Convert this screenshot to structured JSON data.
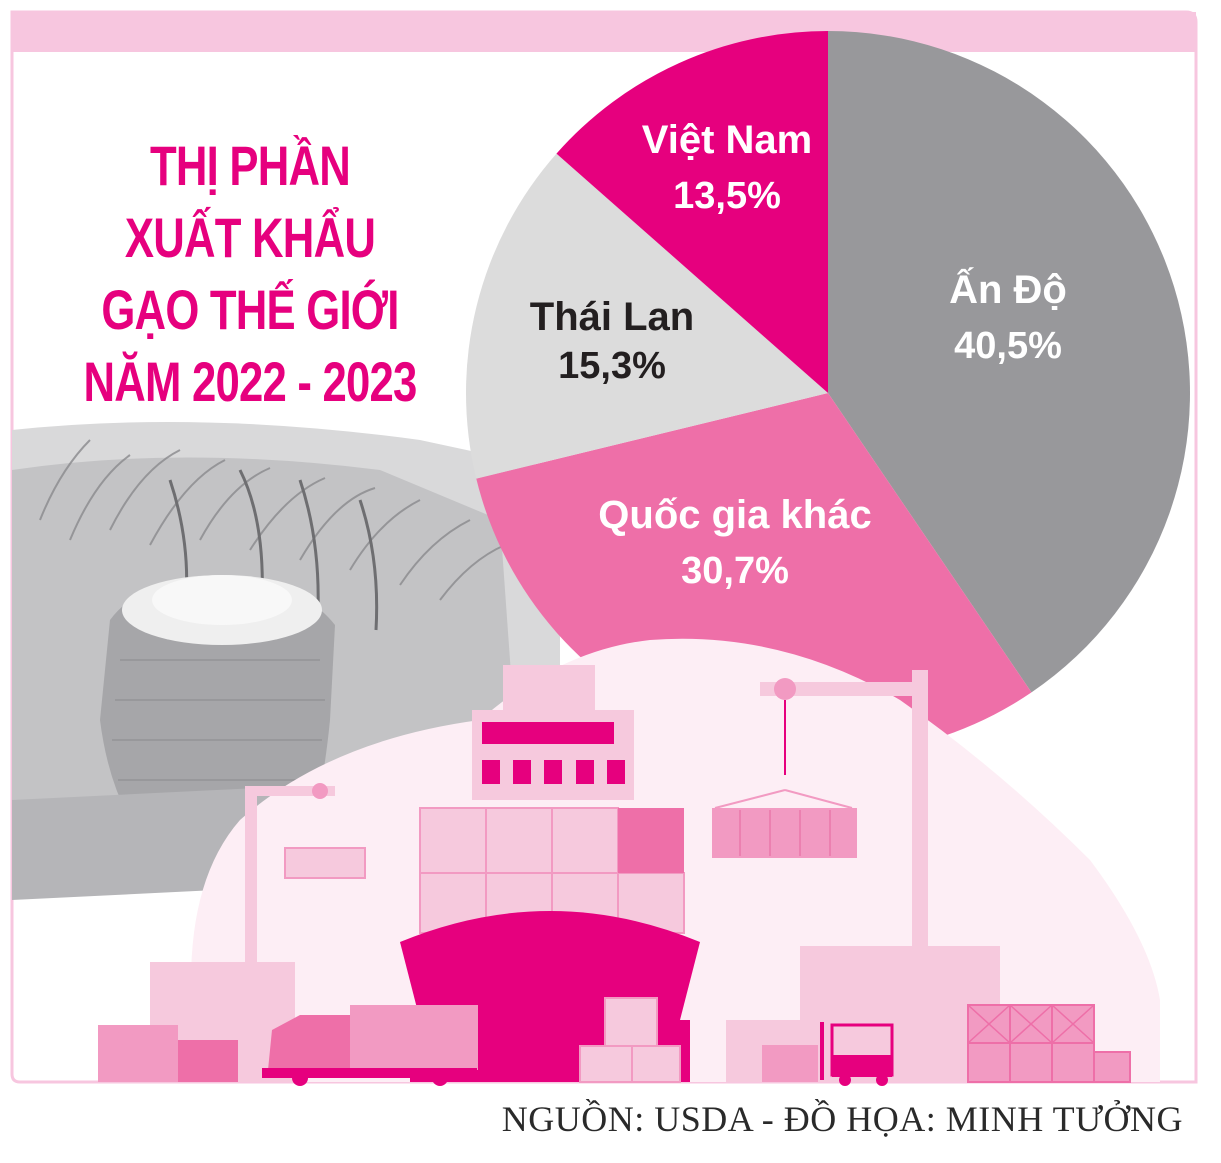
{
  "title_lines": [
    "THỊ PHẦN",
    "XUẤT KHẨU",
    "GẠO THẾ GIỚI",
    "NĂM 2022 - 2023"
  ],
  "source": "NGUỒN: USDA - ĐỒ HỌA: MINH TƯỞNG",
  "colors": {
    "accent": "#e6007e",
    "frame": "#f7c6df",
    "india": "#98989b",
    "other": "#ee6fa8",
    "thailand": "#dcdcdc",
    "vietnam": "#e6007e",
    "illustration_light": "#f6c9dd",
    "illustration_mid": "#f29ac2"
  },
  "chart_data": {
    "type": "pie",
    "slices": [
      {
        "label": "Ấn Độ",
        "value": 40.5,
        "value_text": "40,5%",
        "color": "#98989b",
        "label_color": "#ffffff"
      },
      {
        "label": "Quốc gia khác",
        "value": 30.7,
        "value_text": "30,7%",
        "color": "#ee6fa8",
        "label_color": "#ffffff"
      },
      {
        "label": "Thái Lan",
        "value": 15.3,
        "value_text": "15,3%",
        "color": "#dcdcdc",
        "label_color": "#231f20"
      },
      {
        "label": "Việt Nam",
        "value": 13.5,
        "value_text": "13,5%",
        "color": "#e6007e",
        "label_color": "#ffffff"
      }
    ]
  }
}
